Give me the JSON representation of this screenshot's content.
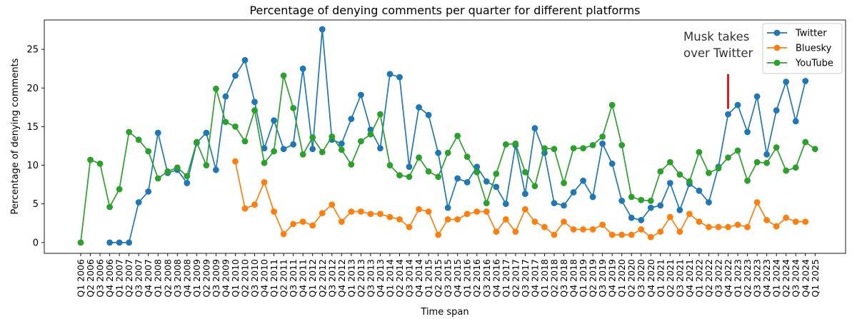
{
  "chart_data": {
    "type": "line",
    "title": "Percentage of denying comments per quarter for different platforms",
    "xlabel": "Time span",
    "ylabel": "Percentage of denying comments",
    "ylim": [
      -1.4,
      28.8
    ],
    "yticks": [
      0,
      5,
      10,
      15,
      20,
      25
    ],
    "legend_position": "top-right",
    "categories": [
      "Q1 2006",
      "Q2 2006",
      "Q3 2006",
      "Q4 2006",
      "Q1 2007",
      "Q2 2007",
      "Q3 2007",
      "Q4 2007",
      "Q1 2008",
      "Q2 2008",
      "Q3 2008",
      "Q4 2008",
      "Q1 2009",
      "Q2 2009",
      "Q3 2009",
      "Q4 2009",
      "Q1 2010",
      "Q2 2010",
      "Q3 2010",
      "Q4 2010",
      "Q1 2011",
      "Q2 2011",
      "Q3 2011",
      "Q4 2011",
      "Q1 2012",
      "Q2 2012",
      "Q3 2012",
      "Q4 2012",
      "Q1 2013",
      "Q2 2013",
      "Q3 2013",
      "Q4 2013",
      "Q1 2014",
      "Q2 2014",
      "Q3 2014",
      "Q4 2014",
      "Q1 2015",
      "Q2 2015",
      "Q3 2015",
      "Q4 2015",
      "Q1 2016",
      "Q2 2016",
      "Q3 2016",
      "Q4 2016",
      "Q1 2017",
      "Q2 2017",
      "Q3 2017",
      "Q4 2017",
      "Q1 2018",
      "Q2 2018",
      "Q3 2018",
      "Q4 2018",
      "Q1 2019",
      "Q2 2019",
      "Q3 2019",
      "Q4 2019",
      "Q1 2020",
      "Q2 2020",
      "Q3 2020",
      "Q4 2020",
      "Q1 2021",
      "Q2 2021",
      "Q3 2021",
      "Q4 2021",
      "Q1 2022",
      "Q2 2022",
      "Q3 2022",
      "Q4 2022",
      "Q1 2023",
      "Q2 2023",
      "Q3 2023",
      "Q4 2023",
      "Q1 2024",
      "Q2 2024",
      "Q3 2024",
      "Q4 2024",
      "Q1 2025"
    ],
    "series": [
      {
        "name": "Twitter",
        "color": "#1f77b4",
        "values": [
          null,
          null,
          null,
          0,
          0,
          0,
          5.2,
          6.6,
          14.2,
          9,
          9.4,
          7.7,
          12.9,
          14.2,
          9.4,
          18.9,
          21.6,
          23.6,
          18.2,
          12.2,
          15.8,
          12.1,
          12.7,
          22.5,
          12.1,
          27.6,
          13.3,
          12.8,
          16,
          19.1,
          14.6,
          12.2,
          21.8,
          21.4,
          9.8,
          17.5,
          16.5,
          11.6,
          4.5,
          8.3,
          7.8,
          9.8,
          7.9,
          7.2,
          5,
          12.6,
          6.3,
          14.8,
          11.6,
          5.1,
          4.8,
          6.5,
          8,
          5.9,
          12.8,
          10.2,
          5.4,
          3.2,
          2.9,
          4.5,
          4.8,
          7.7,
          4.2,
          7.6,
          6.7,
          5.2,
          9.8,
          16.6,
          17.8,
          14.3,
          18.9,
          11.4,
          17.1,
          20.8,
          15.7,
          20.9,
          null
        ]
      },
      {
        "name": "Bluesky",
        "color": "#ff7f0e",
        "values": [
          null,
          null,
          null,
          null,
          null,
          null,
          null,
          null,
          null,
          null,
          null,
          null,
          null,
          null,
          null,
          null,
          10.5,
          4.4,
          4.9,
          7.8,
          4,
          1.1,
          2.4,
          2.7,
          2.2,
          3.8,
          4.9,
          2.7,
          4,
          4,
          3.7,
          3.7,
          3.3,
          3,
          2,
          4.3,
          4,
          1,
          3,
          3,
          3.7,
          4,
          4,
          1.4,
          3,
          1.4,
          4.3,
          2.7,
          2,
          1,
          2.7,
          1.7,
          1.7,
          1.7,
          2.3,
          1,
          1,
          1,
          1.7,
          0.7,
          1.4,
          3.3,
          1.4,
          3.7,
          2.7,
          2,
          2,
          2,
          2.3,
          2,
          5.2,
          2.9,
          2.1,
          3.2,
          2.7,
          2.7,
          null
        ]
      },
      {
        "name": "YouTube",
        "color": "#2ca02c",
        "values": [
          0,
          10.7,
          10.2,
          4.6,
          6.9,
          14.3,
          13.3,
          11.8,
          8.3,
          9.2,
          9.7,
          8.6,
          13,
          10,
          19.9,
          15.6,
          15,
          13.1,
          17.1,
          10.3,
          11.8,
          21.6,
          17.4,
          11.4,
          13.6,
          11.7,
          13.7,
          12,
          10.1,
          13.1,
          14,
          16.6,
          10,
          8.7,
          8.5,
          11,
          9.2,
          8.5,
          11.6,
          13.8,
          11.1,
          9.1,
          5.1,
          8.9,
          12.7,
          12.8,
          9.1,
          7.3,
          12.2,
          12.1,
          7.7,
          12.2,
          12.2,
          12.6,
          13.7,
          17.8,
          12.6,
          5.9,
          5.5,
          5.4,
          9.2,
          10.4,
          8.8,
          7.9,
          11.7,
          9,
          9.6,
          11,
          11.9,
          8,
          10.4,
          10.3,
          12.3,
          9.3,
          9.7,
          13,
          12.1
        ]
      }
    ],
    "annotation": {
      "lines": [
        "Musk takes",
        "over Twitter"
      ],
      "marker_category": "Q4 2022",
      "marker_y": [
        17.3,
        21.8
      ],
      "marker_color": "#e41a1c",
      "text_y": 26.1
    }
  }
}
